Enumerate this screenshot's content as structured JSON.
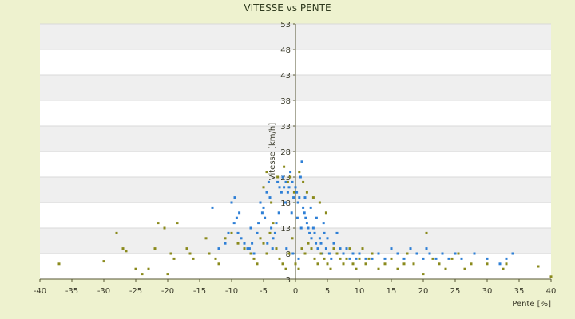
{
  "chart_data": {
    "type": "scatter",
    "title": "VITESSE vs PENTE",
    "xlabel": "Pente [%]",
    "ylabel": "Vitesse [km/h]",
    "xlim": [
      -40,
      40
    ],
    "ylim": [
      3,
      53
    ],
    "x_ticks": [
      "-40",
      "-35",
      "-30",
      "-25",
      "-20",
      "-15",
      "-10",
      "-5",
      "0",
      "5",
      "10",
      "15",
      "20",
      "25",
      "30",
      "35",
      "40"
    ],
    "y_ticks": [
      "3",
      "8",
      "13",
      "18",
      "23",
      "28",
      "33",
      "38",
      "43",
      "48",
      "53"
    ],
    "grid": true,
    "legend": "none",
    "series": [
      {
        "color": "#2e7fd6",
        "points": [
          [
            -13,
            17
          ],
          [
            -10,
            18
          ],
          [
            -9.5,
            19
          ],
          [
            -9.2,
            15
          ],
          [
            -9.6,
            14
          ],
          [
            -9,
            12
          ],
          [
            -8.5,
            11
          ],
          [
            -8,
            10
          ],
          [
            -7.5,
            9
          ],
          [
            -7,
            13
          ],
          [
            -6.5,
            8
          ],
          [
            -6,
            12
          ],
          [
            -5.8,
            14
          ],
          [
            -5.5,
            18
          ],
          [
            -5.2,
            16
          ],
          [
            -5,
            17
          ],
          [
            -4.8,
            15
          ],
          [
            -4.5,
            20
          ],
          [
            -4.2,
            22
          ],
          [
            -4,
            19
          ],
          [
            -3.8,
            13
          ],
          [
            -3.5,
            11
          ],
          [
            -3.2,
            12
          ],
          [
            -3,
            14
          ],
          [
            -2.8,
            22
          ],
          [
            -2.5,
            21
          ],
          [
            -2.2,
            20
          ],
          [
            -2,
            23
          ],
          [
            -1.8,
            21
          ],
          [
            -1.5,
            22
          ],
          [
            -1.2,
            20
          ],
          [
            -1,
            21
          ],
          [
            -0.8,
            24
          ],
          [
            -0.5,
            22
          ],
          [
            -0.3,
            19
          ],
          [
            0,
            21
          ],
          [
            0.2,
            20
          ],
          [
            0.4,
            18
          ],
          [
            0.6,
            19
          ],
          [
            0.8,
            23
          ],
          [
            1,
            26
          ],
          [
            1.2,
            17
          ],
          [
            1.4,
            16
          ],
          [
            1.6,
            15
          ],
          [
            1.8,
            14
          ],
          [
            2,
            13
          ],
          [
            2.2,
            12
          ],
          [
            2.5,
            11
          ],
          [
            2.8,
            13
          ],
          [
            3,
            12
          ],
          [
            3.2,
            10
          ],
          [
            3.5,
            9
          ],
          [
            3.8,
            11
          ],
          [
            4,
            10
          ],
          [
            4.2,
            8
          ],
          [
            4.5,
            12
          ],
          [
            4.8,
            9
          ],
          [
            5,
            11
          ],
          [
            5.3,
            8
          ],
          [
            5.6,
            7
          ],
          [
            6,
            10
          ],
          [
            6.5,
            12
          ],
          [
            7,
            9
          ],
          [
            7.5,
            8
          ],
          [
            8,
            9
          ],
          [
            8.5,
            7
          ],
          [
            9,
            8
          ],
          [
            9.5,
            7
          ],
          [
            10,
            8
          ],
          [
            11,
            7
          ],
          [
            12,
            7
          ],
          [
            13,
            8
          ],
          [
            14,
            7
          ],
          [
            15,
            9
          ],
          [
            16,
            8
          ],
          [
            17,
            7
          ],
          [
            18,
            9
          ],
          [
            19,
            8
          ],
          [
            20,
            7
          ],
          [
            20.5,
            9
          ],
          [
            21,
            8
          ],
          [
            22,
            7
          ],
          [
            23,
            8
          ],
          [
            24,
            7
          ],
          [
            25,
            8
          ],
          [
            26,
            7
          ],
          [
            28,
            8
          ],
          [
            30,
            7
          ],
          [
            32,
            6
          ],
          [
            33,
            7
          ],
          [
            34,
            8
          ],
          [
            -11,
            10
          ],
          [
            -10.5,
            12
          ],
          [
            -12,
            9
          ],
          [
            -8.8,
            16
          ],
          [
            -7.2,
            9
          ],
          [
            -6.8,
            10
          ],
          [
            -2.6,
            16
          ],
          [
            -1.6,
            18
          ],
          [
            -0.6,
            16
          ],
          [
            0.3,
            15
          ],
          [
            0.9,
            13
          ],
          [
            1.5,
            19
          ],
          [
            2.4,
            17
          ],
          [
            3.3,
            15
          ],
          [
            4.4,
            14
          ],
          [
            -3.6,
            9
          ],
          [
            -4.4,
            10
          ],
          [
            -1.4,
            9
          ],
          [
            -0.4,
            8
          ],
          [
            0.5,
            7
          ]
        ]
      },
      {
        "color": "#8a8a1c",
        "points": [
          [
            -37,
            6
          ],
          [
            -30,
            6.5
          ],
          [
            -28,
            12
          ],
          [
            -27,
            9
          ],
          [
            -26.5,
            8.5
          ],
          [
            -25,
            5
          ],
          [
            -24,
            4
          ],
          [
            -23,
            5
          ],
          [
            -22,
            9
          ],
          [
            -21.5,
            14
          ],
          [
            -20.5,
            13
          ],
          [
            -20,
            4
          ],
          [
            -19.5,
            8
          ],
          [
            -19,
            7
          ],
          [
            -18.5,
            14
          ],
          [
            -17,
            9
          ],
          [
            -16.5,
            8
          ],
          [
            -16,
            7
          ],
          [
            -14,
            11
          ],
          [
            -13.5,
            8
          ],
          [
            -12.5,
            7
          ],
          [
            -12,
            6
          ],
          [
            -11,
            11
          ],
          [
            -10,
            12
          ],
          [
            -9,
            10
          ],
          [
            -8,
            9
          ],
          [
            -7,
            8
          ],
          [
            -6.5,
            7
          ],
          [
            -6,
            6
          ],
          [
            -5.5,
            11
          ],
          [
            -5,
            10
          ],
          [
            -4.5,
            8
          ],
          [
            -4,
            12
          ],
          [
            -3.5,
            14
          ],
          [
            -3,
            9
          ],
          [
            -2.5,
            7
          ],
          [
            -2,
            6
          ],
          [
            -1.5,
            5
          ],
          [
            -1,
            8
          ],
          [
            -0.5,
            11
          ],
          [
            0,
            6
          ],
          [
            0.5,
            5
          ],
          [
            1,
            9
          ],
          [
            1.5,
            8
          ],
          [
            2,
            10
          ],
          [
            2.5,
            9
          ],
          [
            3,
            7
          ],
          [
            3.5,
            6
          ],
          [
            4,
            8
          ],
          [
            4.5,
            7
          ],
          [
            5,
            6
          ],
          [
            5.5,
            5
          ],
          [
            6,
            9
          ],
          [
            6.5,
            8
          ],
          [
            7,
            7
          ],
          [
            7.5,
            6
          ],
          [
            8,
            7
          ],
          [
            8.5,
            9
          ],
          [
            9,
            6
          ],
          [
            9.5,
            5
          ],
          [
            10,
            7
          ],
          [
            10.5,
            9
          ],
          [
            11,
            6
          ],
          [
            11.5,
            7
          ],
          [
            12,
            8
          ],
          [
            13,
            5
          ],
          [
            14,
            6
          ],
          [
            15,
            7
          ],
          [
            16,
            5
          ],
          [
            17,
            6
          ],
          [
            17.5,
            8
          ],
          [
            18.5,
            6
          ],
          [
            20,
            4
          ],
          [
            20.5,
            12
          ],
          [
            21.5,
            7
          ],
          [
            22.5,
            6
          ],
          [
            23.5,
            5
          ],
          [
            24.5,
            7
          ],
          [
            25.5,
            8
          ],
          [
            26.5,
            5
          ],
          [
            27.5,
            6
          ],
          [
            30,
            6
          ],
          [
            32.5,
            5
          ],
          [
            33,
            6
          ],
          [
            38,
            5.5
          ],
          [
            40,
            3.5
          ],
          [
            -5,
            21
          ],
          [
            -4.5,
            24
          ],
          [
            -3.8,
            18
          ],
          [
            -2.8,
            23
          ],
          [
            -1.8,
            25
          ],
          [
            -0.8,
            23
          ],
          [
            0.6,
            24
          ],
          [
            1.2,
            22
          ],
          [
            -1.2,
            22
          ],
          [
            -0.2,
            20
          ],
          [
            1.8,
            20
          ],
          [
            2.8,
            19
          ],
          [
            3.8,
            18
          ],
          [
            4.8,
            16
          ]
        ]
      }
    ]
  }
}
